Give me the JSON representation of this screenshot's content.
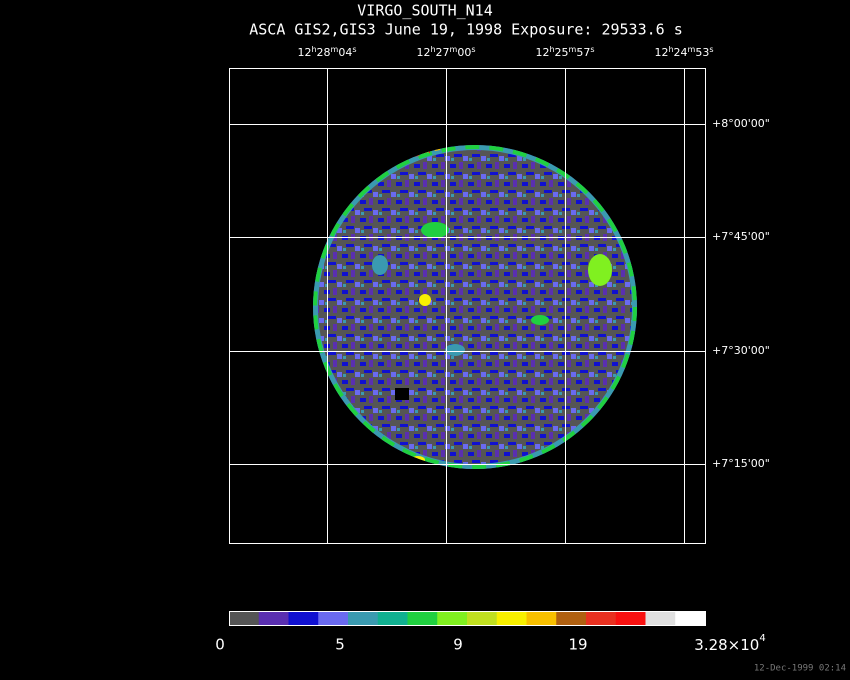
{
  "title": "VIRGO_SOUTH_N14",
  "subtitle": "ASCA GIS2,GIS3 June 19, 1998 Exposure: 29533.6 s",
  "ra_labels": [
    [
      "12",
      "h",
      "28",
      "m",
      "04",
      "s"
    ],
    [
      "12",
      "h",
      "27",
      "m",
      "00",
      "s"
    ],
    [
      "12",
      "h",
      "25",
      "m",
      "57",
      "s"
    ],
    [
      "12",
      "h",
      "24",
      "m",
      "53",
      "s"
    ]
  ],
  "dec_labels": [
    "+8°00'00\"",
    "+7°45'00\"",
    "+7°30'00\"",
    "+7°15'00\""
  ],
  "colorbar": {
    "colors": [
      "#555555",
      "#5a2fb0",
      "#1010d0",
      "#6a6af0",
      "#3a9ab0",
      "#10b090",
      "#20d040",
      "#80f020",
      "#c0e020",
      "#f8f000",
      "#f8c000",
      "#b06010",
      "#e83020",
      "#f81010",
      "#e0e0e0",
      "#ffffff"
    ],
    "labels": [
      "0",
      "5",
      "9",
      "19",
      {
        "base": "3.28×10",
        "exponent": "4"
      }
    ]
  },
  "footer": "12-Dec-1999 02:14"
}
